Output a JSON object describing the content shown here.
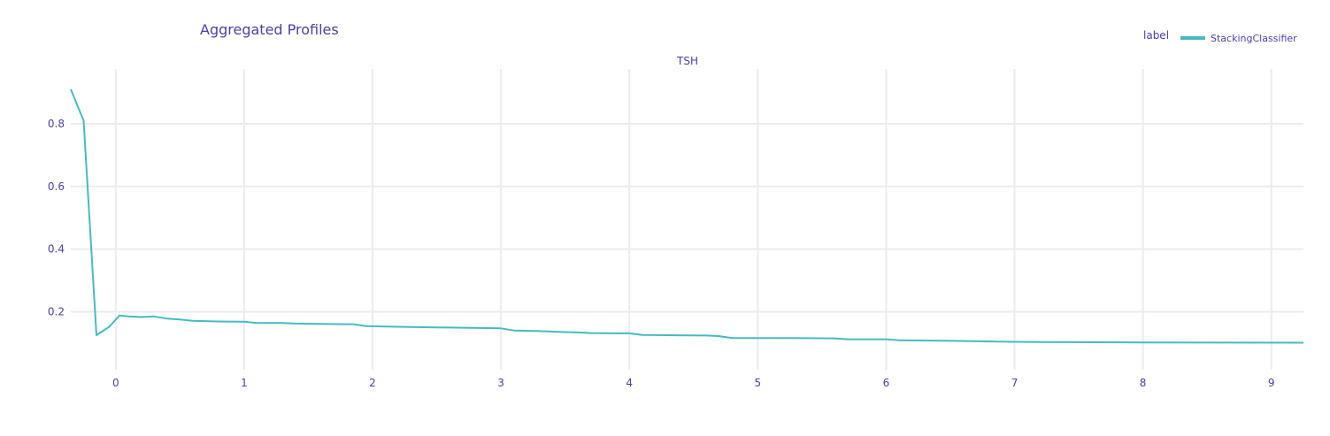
{
  "chart_data": {
    "type": "line",
    "title": "Aggregated Profiles",
    "subplot_title": "TSH",
    "xlabel": "",
    "ylabel": "",
    "xlim": [
      -0.35,
      9.25
    ],
    "ylim": [
      0.015,
      0.975
    ],
    "x_ticks": [
      0,
      1,
      2,
      3,
      4,
      5,
      6,
      7,
      8,
      9
    ],
    "y_ticks": [
      0.2,
      0.4,
      0.6,
      0.8
    ],
    "grid": true,
    "legend": {
      "title": "label",
      "placement": "top-right"
    },
    "series": [
      {
        "name": "StackingClassifier",
        "color": "#46bac2",
        "x": [
          -0.35,
          -0.25,
          -0.15,
          -0.05,
          0.03,
          0.1,
          0.2,
          0.3,
          0.4,
          0.5,
          0.6,
          0.8,
          1.0,
          1.1,
          1.3,
          1.4,
          1.6,
          1.85,
          1.95,
          2.2,
          2.5,
          3.0,
          3.1,
          3.3,
          3.5,
          3.6,
          3.7,
          3.9,
          4.0,
          4.1,
          4.3,
          4.6,
          4.7,
          4.8,
          4.9,
          5.2,
          5.6,
          5.7,
          6.0,
          6.1,
          6.5,
          7.0,
          7.2,
          8.0,
          9.25
        ],
        "values": [
          0.91,
          0.81,
          0.125,
          0.152,
          0.188,
          0.185,
          0.183,
          0.185,
          0.178,
          0.175,
          0.171,
          0.169,
          0.168,
          0.164,
          0.164,
          0.162,
          0.161,
          0.16,
          0.154,
          0.152,
          0.15,
          0.147,
          0.14,
          0.138,
          0.135,
          0.134,
          0.132,
          0.131,
          0.131,
          0.126,
          0.125,
          0.124,
          0.122,
          0.116,
          0.116,
          0.116,
          0.115,
          0.112,
          0.112,
          0.109,
          0.107,
          0.104,
          0.103,
          0.102,
          0.101
        ]
      }
    ]
  },
  "colors": {
    "text": "#4a3fa9",
    "grid": "#ebebf2",
    "background": "#ffffff"
  }
}
